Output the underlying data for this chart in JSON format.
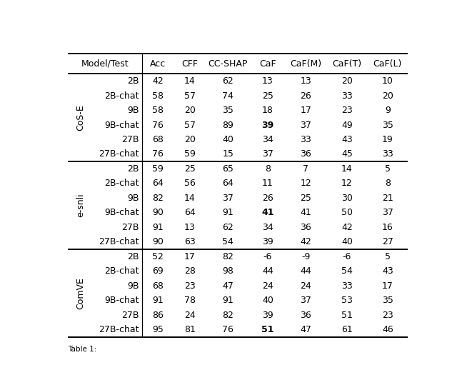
{
  "columns": [
    "Model/Test",
    "Acc",
    "CFF",
    "CC-SHAP",
    "CaF",
    "CaF(M)",
    "CaF(T)",
    "CaF(L)"
  ],
  "groups": [
    {
      "label": "CoS-E",
      "rows": [
        [
          "2B",
          "42",
          "14",
          "62",
          "13",
          "13",
          "20",
          "10"
        ],
        [
          "2B-chat",
          "58",
          "57",
          "74",
          "25",
          "26",
          "33",
          "20"
        ],
        [
          "9B",
          "58",
          "20",
          "35",
          "18",
          "17",
          "23",
          "9"
        ],
        [
          "9B-chat",
          "76",
          "57",
          "89",
          "39",
          "37",
          "49",
          "35"
        ],
        [
          "27B",
          "68",
          "20",
          "40",
          "34",
          "33",
          "43",
          "19"
        ],
        [
          "27B-chat",
          "76",
          "59",
          "15",
          "37",
          "36",
          "45",
          "33"
        ]
      ],
      "bold_caf_row": 3
    },
    {
      "label": "e-snli",
      "rows": [
        [
          "2B",
          "59",
          "25",
          "65",
          "8",
          "7",
          "14",
          "5"
        ],
        [
          "2B-chat",
          "64",
          "56",
          "64",
          "11",
          "12",
          "12",
          "8"
        ],
        [
          "9B",
          "82",
          "14",
          "37",
          "26",
          "25",
          "30",
          "21"
        ],
        [
          "9B-chat",
          "90",
          "64",
          "91",
          "41",
          "41",
          "50",
          "37"
        ],
        [
          "27B",
          "91",
          "13",
          "62",
          "34",
          "36",
          "42",
          "16"
        ],
        [
          "27B-chat",
          "90",
          "63",
          "54",
          "39",
          "42",
          "40",
          "27"
        ]
      ],
      "bold_caf_row": 3
    },
    {
      "label": "ComVE",
      "rows": [
        [
          "2B",
          "52",
          "17",
          "82",
          "-6",
          "-9",
          "-6",
          "5"
        ],
        [
          "2B-chat",
          "69",
          "28",
          "98",
          "44",
          "44",
          "54",
          "43"
        ],
        [
          "9B",
          "68",
          "23",
          "47",
          "24",
          "24",
          "33",
          "17"
        ],
        [
          "9B-chat",
          "91",
          "78",
          "91",
          "40",
          "37",
          "53",
          "35"
        ],
        [
          "27B",
          "86",
          "24",
          "82",
          "39",
          "36",
          "51",
          "23"
        ],
        [
          "27B-chat",
          "95",
          "81",
          "76",
          "51",
          "47",
          "61",
          "46"
        ]
      ],
      "bold_caf_row": 5
    }
  ],
  "figsize": [
    6.4,
    5.11
  ],
  "dpi": 100,
  "font_size": 9,
  "background_color": "#ffffff",
  "text_color": "#000000",
  "line_color": "#000000",
  "footer": "Table 1:"
}
